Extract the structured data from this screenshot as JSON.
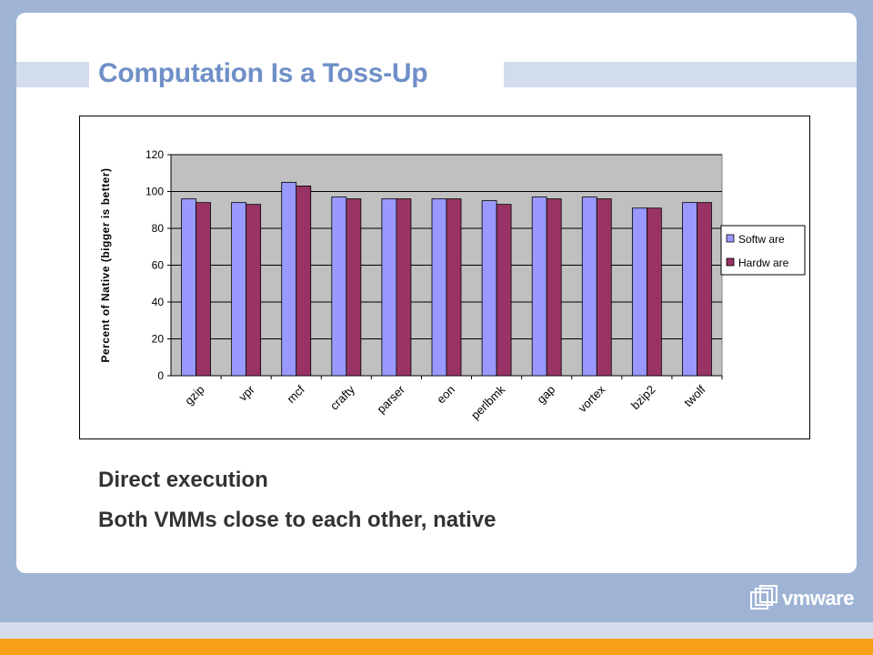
{
  "slide": {
    "title": "Computation Is a Toss-Up",
    "bullets": [
      "Direct execution",
      "Both VMMs close to each other, native"
    ],
    "logo_text": "vmware",
    "logo_icon": "vmware-logo-icon"
  },
  "colors": {
    "background": "#9fb4d5",
    "title": "#6f8fc7",
    "plot_area": "#c0c0c0",
    "software": "#9999ff",
    "hardware": "#993366",
    "accent_stripe": "#f7a11a"
  },
  "chart_data": {
    "type": "bar",
    "title": "",
    "xlabel": "",
    "ylabel": "Percent of Native (bigger is better)",
    "ylim": [
      0,
      120
    ],
    "yticks": [
      0,
      20,
      40,
      60,
      80,
      100,
      120
    ],
    "grid": true,
    "legend_position": "right",
    "categories": [
      "gzip",
      "vpr",
      "mcf",
      "crafty",
      "parser",
      "eon",
      "perlbmk",
      "gap",
      "vortex",
      "bzip2",
      "twolf"
    ],
    "series": [
      {
        "name": "Softw are",
        "color": "#9999ff",
        "values": [
          96,
          94,
          105,
          97,
          96,
          96,
          95,
          97,
          97,
          91,
          94
        ]
      },
      {
        "name": "Hardw are",
        "color": "#993366",
        "values": [
          94,
          93,
          103,
          96,
          96,
          96,
          93,
          96,
          96,
          91,
          94
        ]
      }
    ]
  }
}
